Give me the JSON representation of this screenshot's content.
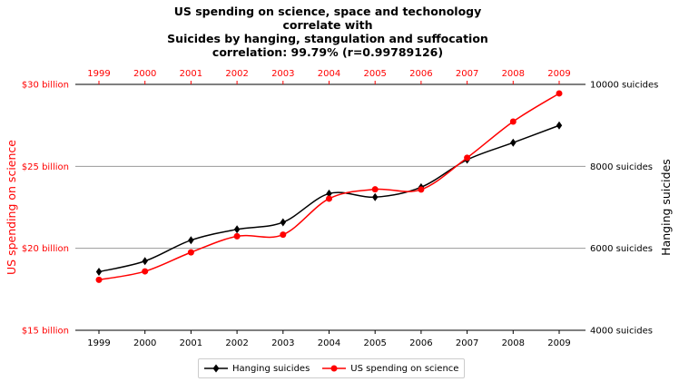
{
  "chart_data": {
    "type": "line",
    "title": [
      "US spending on science, space and techonology",
      "correlate with",
      "Suicides by hanging, stangulation and suffocation",
      "correlation: 99.79% (r=0.99789126)"
    ],
    "x": [
      "1999",
      "2000",
      "2001",
      "2002",
      "2003",
      "2004",
      "2005",
      "2006",
      "2007",
      "2008",
      "2009"
    ],
    "series": [
      {
        "name": "Hanging suicides",
        "color": "#000000",
        "marker": "diamond",
        "axis": "right",
        "values": [
          5427,
          5688,
          6198,
          6462,
          6635,
          7336,
          7248,
          7491,
          8161,
          8578,
          8998
        ]
      },
      {
        "name": "US spending on science",
        "color": "#ff0000",
        "marker": "circle",
        "axis": "left",
        "values": [
          18.079,
          18.594,
          19.753,
          20.734,
          20.831,
          23.029,
          23.597,
          23.584,
          25.525,
          27.731,
          29.449
        ]
      }
    ],
    "left_axis": {
      "label": "US spending on science",
      "color": "#ff0000",
      "ylim": [
        15,
        30
      ],
      "ticks": [
        {
          "value": 30,
          "label": "$30 billion"
        },
        {
          "value": 25,
          "label": "$25 billion"
        },
        {
          "value": 20,
          "label": "$20 billion"
        },
        {
          "value": 15,
          "label": "$15 billion"
        }
      ]
    },
    "right_axis": {
      "label": "Hanging suicides",
      "color": "#000000",
      "ylim": [
        4000,
        10000
      ],
      "ticks": [
        {
          "value": 10000,
          "label": "10000 suicides"
        },
        {
          "value": 8000,
          "label": "8000 suicides"
        },
        {
          "value": 6000,
          "label": "6000 suicides"
        },
        {
          "value": 4000,
          "label": "4000 suicides"
        }
      ]
    },
    "top_axis_color": "#ff0000",
    "grid": true,
    "legend_position": "bottom"
  }
}
